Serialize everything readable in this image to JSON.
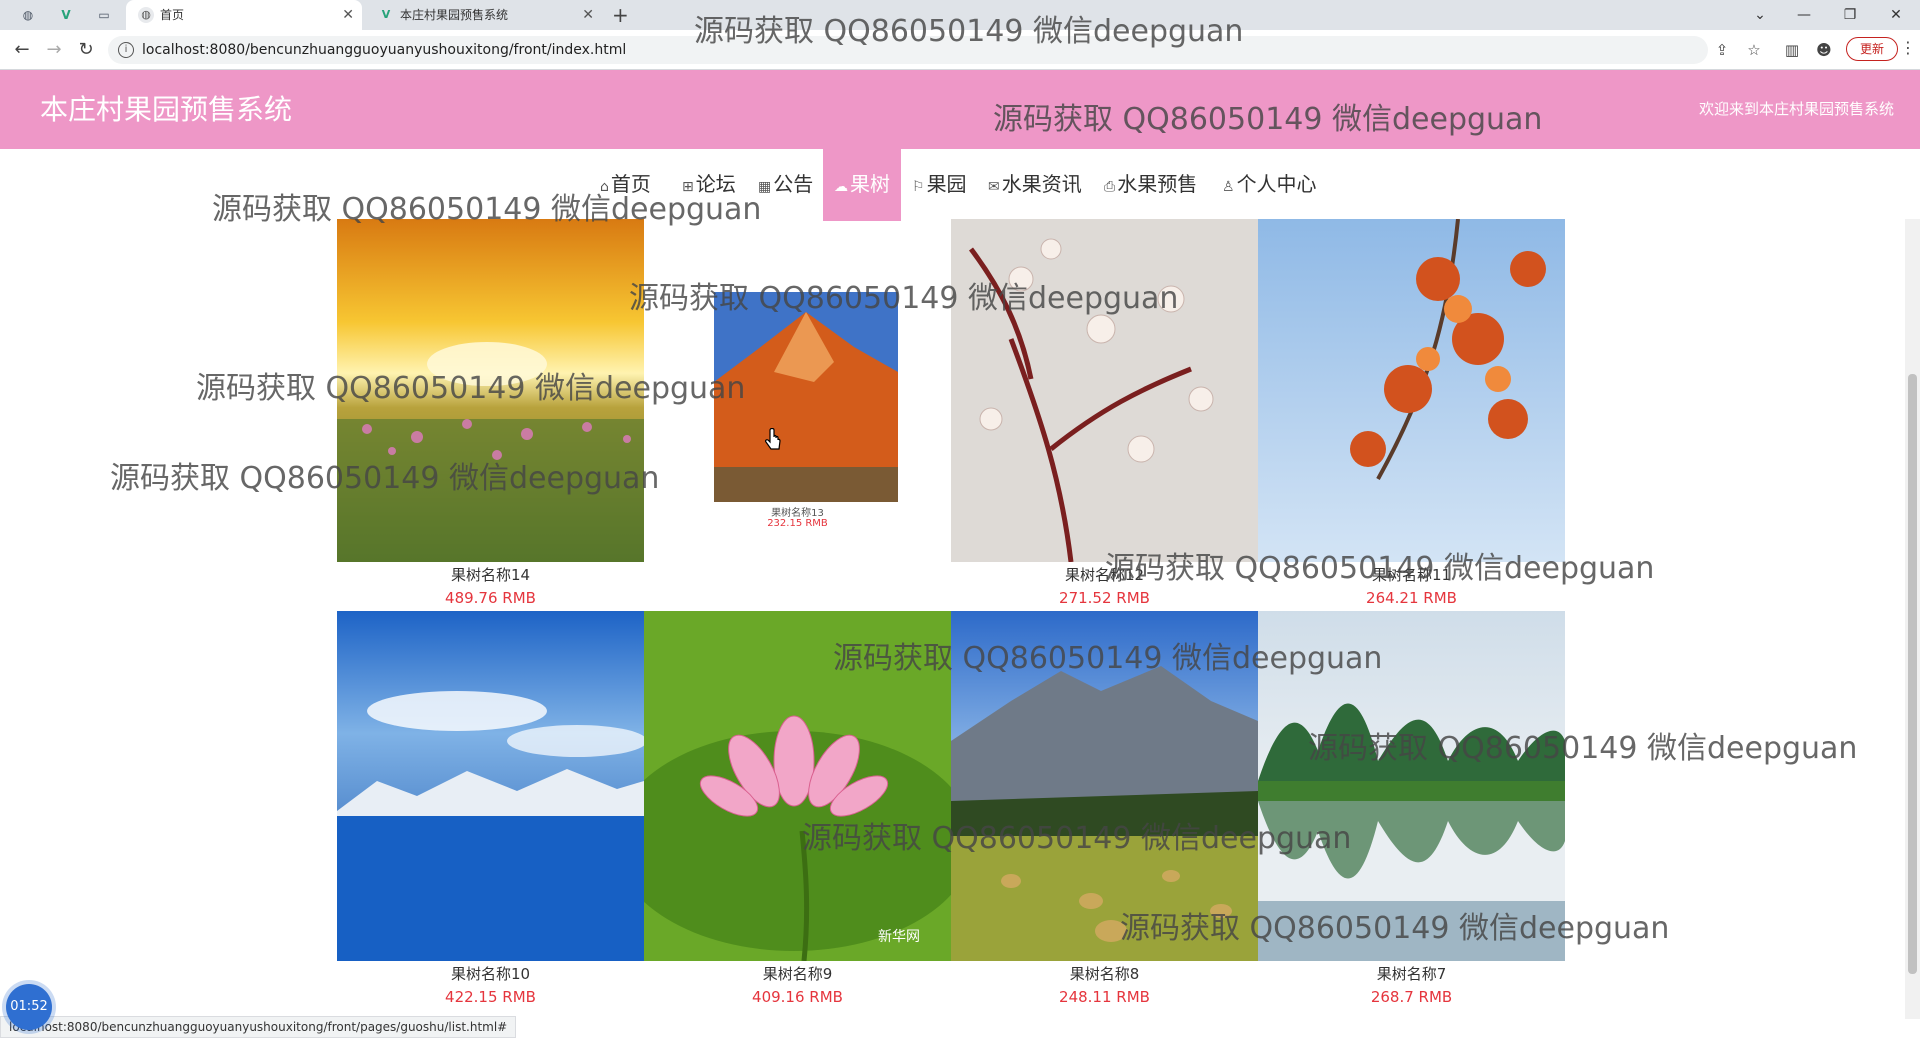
{
  "browser": {
    "tabs": [
      {
        "title": "首页",
        "active": true
      },
      {
        "title": "本庄村果园预售系统",
        "active": false
      }
    ],
    "url": "localhost:8080/bencunzhuangguoyuanyushouxitong/front/index.html",
    "update_label": "更新",
    "status_url": "localhost:8080/bencunzhuangguoyuanyushouxitong/front/pages/guoshu/list.html#",
    "timer": "01:52"
  },
  "site": {
    "title": "本庄村果园预售系统",
    "welcome": "欢迎来到本庄村果园预售系统"
  },
  "nav": [
    {
      "icon": "home-icon",
      "glyph": "⌂",
      "label": "首页"
    },
    {
      "icon": "forum-icon",
      "glyph": "⊞",
      "label": "论坛"
    },
    {
      "icon": "notice-icon",
      "glyph": "▦",
      "label": "公告"
    },
    {
      "icon": "tree-icon",
      "glyph": "☁",
      "label": "果树",
      "active": true
    },
    {
      "icon": "flag-icon",
      "glyph": "⚐",
      "label": "果园"
    },
    {
      "icon": "mail-icon",
      "glyph": "✉",
      "label": "水果资讯"
    },
    {
      "icon": "print-icon",
      "glyph": "⎙",
      "label": "水果预售"
    },
    {
      "icon": "user-icon",
      "glyph": "♙",
      "label": "个人中心"
    }
  ],
  "products": [
    {
      "name": "果树名称14",
      "price": "489.76 RMB",
      "image": "sunset-flower-field"
    },
    {
      "name": "果树名称13",
      "price": "232.15 RMB",
      "image": "red-mountain"
    },
    {
      "name": "果树名称12",
      "price": "271.52 RMB",
      "image": "white-blossoms"
    },
    {
      "name": "果树名称11",
      "price": "264.21 RMB",
      "image": "autumn-leaves"
    },
    {
      "name": "果树名称10",
      "price": "422.15 RMB",
      "image": "lake-snow-mountains"
    },
    {
      "name": "果树名称9",
      "price": "409.16 RMB",
      "image": "pink-lotus"
    },
    {
      "name": "果树名称8",
      "price": "248.11 RMB",
      "image": "mountain-hayfield"
    },
    {
      "name": "果树名称7",
      "price": "268.7 RMB",
      "image": "karst-river-reflection"
    }
  ],
  "image_labels": {
    "lotus_logo": "新华网"
  },
  "watermark": "源码获取 QQ86050149 微信deepguan",
  "colors": {
    "header_pink": "#ee97c7",
    "price_red": "#e5353d",
    "nav_active": "#ee97c7"
  }
}
